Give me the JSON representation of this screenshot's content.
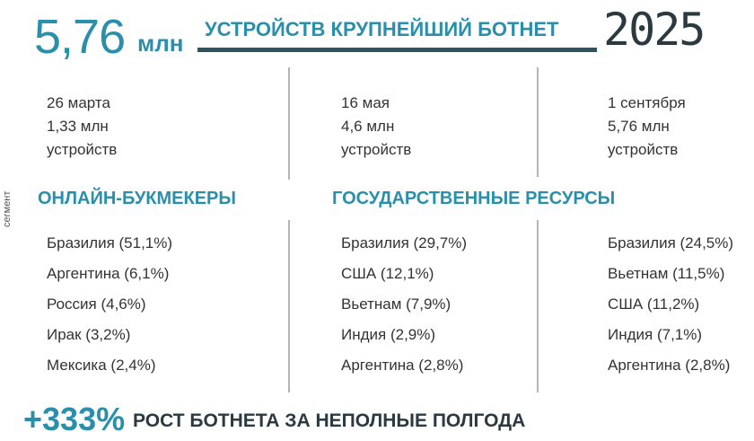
{
  "header": {
    "value": "5,76",
    "unit": "млн",
    "title": "УСТРОЙСТВ КРУПНЕЙШИЙ БОТНЕТ",
    "year": "2025"
  },
  "side_label": "сегмент",
  "milestones": [
    {
      "date": "26 марта",
      "count": "1,33 млн",
      "unit": "устройств"
    },
    {
      "date": "16 мая",
      "count": "4,6 млн",
      "unit": "устройств"
    },
    {
      "date": "1 сентября",
      "count": "5,76 млн",
      "unit": "устройств"
    }
  ],
  "segments": [
    {
      "title": "ОНЛАЙН-БУКМЕКЕРЫ",
      "lists": [
        [
          "Бразилия (51,1%)",
          "Аргентина (6,1%)",
          "Россия (4,6%)",
          "Ирак (3,2%)",
          "Мексика (2,4%)"
        ]
      ]
    },
    {
      "title": "ГОСУДАРСТВЕННЫЕ РЕСУРСЫ",
      "lists": [
        [
          "Бразилия (29,7%)",
          "США (12,1%)",
          "Вьетнам (7,9%)",
          "Индия (2,9%)",
          "Аргентина (2,8%)"
        ],
        [
          "Бразилия (24,5%)",
          "Вьетнам (11,5%)",
          "США (11,2%)",
          "Индия (7,1%)",
          "Аргентина (2,8%)"
        ]
      ]
    }
  ],
  "footer": {
    "value": "+333%",
    "text": "РОСТ БОТНЕТА ЗА НЕПОЛНЫЕ ПОЛГОДА"
  }
}
